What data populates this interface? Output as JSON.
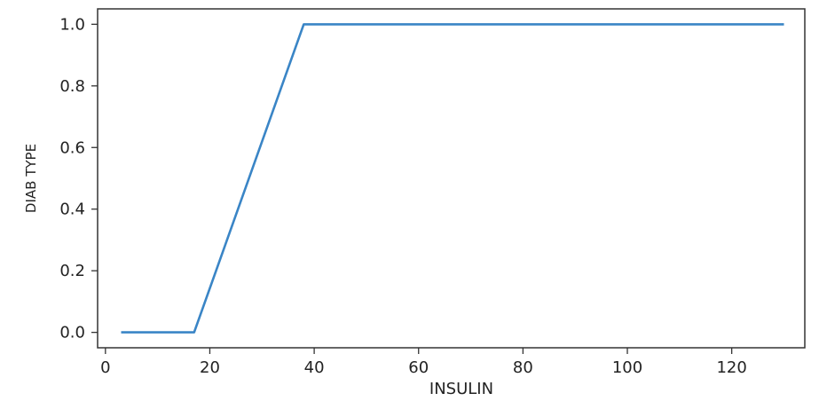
{
  "chart_data": {
    "type": "line",
    "title": "",
    "xlabel": "INSULIN",
    "ylabel": "DIAB TYPE",
    "xlim": [
      -1.5,
      134
    ],
    "ylim": [
      -0.05,
      1.05
    ],
    "xticks": [
      0,
      20,
      40,
      60,
      80,
      100,
      120
    ],
    "yticks": [
      "0.0",
      "0.2",
      "0.4",
      "0.6",
      "0.8",
      "1.0"
    ],
    "grid": false,
    "series": [
      {
        "color": "#3a85c6",
        "x": [
          3,
          17,
          38,
          130
        ],
        "y": [
          0.0,
          0.0,
          1.0,
          1.0
        ]
      }
    ]
  }
}
